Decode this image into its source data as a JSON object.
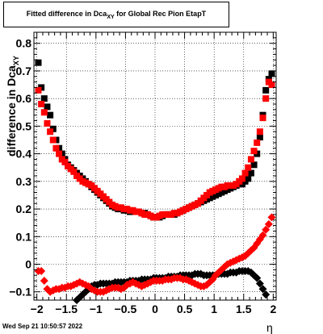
{
  "chart_data": {
    "type": "scatter",
    "title": "Fitted difference in Dca",
    "title_sub": "XY",
    "title_suffix": " for Global Rec Pion EtapT",
    "xlabel": "η",
    "ylabel": "difference in Dca",
    "ylabel_sub": "XY",
    "xlim": [
      -2.05,
      2.05
    ],
    "ylim": [
      -0.13,
      0.84
    ],
    "grid": true,
    "x_ticks": [
      -2,
      -1.5,
      -1,
      -0.5,
      0,
      0.5,
      1,
      1.5,
      2
    ],
    "x_tick_labels": [
      "−2",
      "−1.5",
      "−1",
      "−0.5",
      "0",
      "0.5",
      "1",
      "1.5",
      "2"
    ],
    "y_ticks": [
      -0.1,
      0,
      0.1,
      0.2,
      0.3,
      0.4,
      0.5,
      0.6,
      0.7,
      0.8
    ],
    "y_tick_labels": [
      "−0.1",
      "0",
      "0.1",
      "0.2",
      "0.3",
      "0.4",
      "0.5",
      "0.6",
      "0.7",
      "0.8"
    ],
    "colors": {
      "series_black": "#000000",
      "series_red": "#ff0000"
    },
    "series": [
      {
        "color": "#000000",
        "marker": "square",
        "x": [
          -1.975,
          -1.925,
          -1.875,
          -1.825,
          -1.775,
          -1.725,
          -1.675,
          -1.625,
          -1.575,
          -1.525,
          -1.475,
          -1.425,
          -1.375,
          -1.325,
          -1.275,
          -1.225,
          -1.175,
          -1.125,
          -1.075,
          -1.025,
          -0.975,
          -0.925,
          -0.875,
          -0.825,
          -0.775,
          -0.725,
          -0.675,
          -0.625,
          -0.575,
          -0.525,
          -0.475,
          -0.425,
          -0.375,
          -0.325,
          -0.275,
          -0.225,
          -0.175,
          -0.125,
          -0.075,
          -0.025,
          0.025,
          0.075,
          0.125,
          0.175,
          0.225,
          0.275,
          0.325,
          0.375,
          0.425,
          0.475,
          0.525,
          0.575,
          0.625,
          0.675,
          0.725,
          0.775,
          0.825,
          0.875,
          0.925,
          0.975,
          1.025,
          1.075,
          1.125,
          1.175,
          1.225,
          1.275,
          1.325,
          1.375,
          1.425,
          1.475,
          1.525,
          1.575,
          1.625,
          1.675,
          1.725,
          1.775,
          1.825,
          1.875,
          1.925,
          1.975
        ],
        "y": [
          0.73,
          0.64,
          0.6,
          0.57,
          0.54,
          0.49,
          0.45,
          0.42,
          0.4,
          0.38,
          0.36,
          0.35,
          0.34,
          0.33,
          0.32,
          0.31,
          0.3,
          0.29,
          0.28,
          0.27,
          0.26,
          0.25,
          0.24,
          0.23,
          0.22,
          0.21,
          0.205,
          0.2,
          0.2,
          0.195,
          0.195,
          0.19,
          0.19,
          0.19,
          0.19,
          0.185,
          0.185,
          0.18,
          0.175,
          0.17,
          0.17,
          0.17,
          0.175,
          0.18,
          0.18,
          0.18,
          0.18,
          0.185,
          0.19,
          0.195,
          0.2,
          0.205,
          0.21,
          0.215,
          0.22,
          0.225,
          0.23,
          0.235,
          0.24,
          0.245,
          0.25,
          0.255,
          0.26,
          0.265,
          0.27,
          0.275,
          0.28,
          0.285,
          0.29,
          0.29,
          0.3,
          0.31,
          0.33,
          0.36,
          0.4,
          0.46,
          0.54,
          0.63,
          0.67,
          0.69
        ]
      },
      {
        "color": "#ff0000",
        "marker": "square",
        "x": [
          -1.975,
          -1.925,
          -1.875,
          -1.825,
          -1.775,
          -1.725,
          -1.675,
          -1.625,
          -1.575,
          -1.525,
          -1.475,
          -1.425,
          -1.375,
          -1.325,
          -1.275,
          -1.225,
          -1.175,
          -1.125,
          -1.075,
          -1.025,
          -0.975,
          -0.925,
          -0.875,
          -0.825,
          -0.775,
          -0.725,
          -0.675,
          -0.625,
          -0.575,
          -0.525,
          -0.475,
          -0.425,
          -0.375,
          -0.325,
          -0.275,
          -0.225,
          -0.175,
          -0.125,
          -0.075,
          -0.025,
          0.025,
          0.075,
          0.125,
          0.175,
          0.225,
          0.275,
          0.325,
          0.375,
          0.425,
          0.475,
          0.525,
          0.575,
          0.625,
          0.675,
          0.725,
          0.775,
          0.825,
          0.875,
          0.925,
          0.975,
          1.025,
          1.075,
          1.125,
          1.175,
          1.225,
          1.275,
          1.325,
          1.375,
          1.425,
          1.475,
          1.525,
          1.575,
          1.625,
          1.675,
          1.725,
          1.775,
          1.825,
          1.875,
          1.925,
          1.975
        ],
        "y": [
          0.63,
          0.58,
          0.55,
          0.51,
          0.48,
          0.45,
          0.42,
          0.4,
          0.38,
          0.37,
          0.355,
          0.345,
          0.335,
          0.32,
          0.31,
          0.3,
          0.295,
          0.29,
          0.285,
          0.275,
          0.265,
          0.255,
          0.245,
          0.235,
          0.225,
          0.215,
          0.21,
          0.205,
          0.205,
          0.2,
          0.2,
          0.195,
          0.195,
          0.19,
          0.19,
          0.185,
          0.18,
          0.18,
          0.175,
          0.17,
          0.17,
          0.175,
          0.18,
          0.18,
          0.18,
          0.18,
          0.185,
          0.185,
          0.19,
          0.195,
          0.2,
          0.205,
          0.21,
          0.215,
          0.22,
          0.23,
          0.24,
          0.25,
          0.26,
          0.265,
          0.27,
          0.275,
          0.28,
          0.28,
          0.285,
          0.285,
          0.285,
          0.29,
          0.3,
          0.31,
          0.33,
          0.35,
          0.38,
          0.41,
          0.44,
          0.48,
          0.53,
          0.6,
          0.66,
          0.65
        ]
      },
      {
        "color": "#000000",
        "marker": "diamond",
        "x": [
          -1.325,
          -1.275,
          -1.225,
          -1.175,
          -1.125,
          -1.075,
          -1.025,
          -0.975,
          -0.925,
          -0.875,
          -0.825,
          -0.775,
          -0.725,
          -0.675,
          -0.625,
          -0.575,
          -0.525,
          -0.475,
          -0.425,
          -0.375,
          -0.325,
          -0.275,
          -0.225,
          -0.175,
          -0.125,
          -0.075,
          -0.025,
          0.025,
          0.075,
          0.125,
          0.175,
          0.225,
          0.275,
          0.325,
          0.375,
          0.425,
          0.475,
          0.525,
          0.575,
          0.625,
          0.675,
          0.725,
          0.775,
          0.825,
          0.875,
          0.925,
          0.975,
          1.025,
          1.075,
          1.125,
          1.175,
          1.225,
          1.275,
          1.325,
          1.375,
          1.425,
          1.475,
          1.525,
          1.575,
          1.625,
          1.675,
          1.725,
          1.775,
          1.825,
          1.875
        ],
        "y": [
          -0.13,
          -0.12,
          -0.11,
          -0.1,
          -0.09,
          -0.08,
          -0.075,
          -0.075,
          -0.07,
          -0.07,
          -0.07,
          -0.07,
          -0.07,
          -0.065,
          -0.065,
          -0.065,
          -0.065,
          -0.065,
          -0.06,
          -0.06,
          -0.06,
          -0.06,
          -0.055,
          -0.055,
          -0.055,
          -0.055,
          -0.05,
          -0.05,
          -0.05,
          -0.05,
          -0.05,
          -0.045,
          -0.045,
          -0.045,
          -0.045,
          -0.04,
          -0.04,
          -0.04,
          -0.04,
          -0.04,
          -0.035,
          -0.035,
          -0.035,
          -0.04,
          -0.04,
          -0.04,
          -0.04,
          -0.04,
          -0.035,
          -0.035,
          -0.035,
          -0.035,
          -0.03,
          -0.03,
          -0.03,
          -0.025,
          -0.025,
          -0.025,
          -0.025,
          -0.03,
          -0.04,
          -0.05,
          -0.07,
          -0.09,
          -0.11
        ]
      },
      {
        "color": "#ff0000",
        "marker": "diamond",
        "x": [
          -1.975,
          -1.925,
          -1.875,
          -1.825,
          -1.775,
          -1.725,
          -1.675,
          -1.625,
          -1.575,
          -1.525,
          -1.475,
          -1.425,
          -1.375,
          -1.325,
          -1.275,
          -1.225,
          -1.175,
          -1.125,
          -1.075,
          -1.025,
          -0.975,
          -0.925,
          -0.875,
          -0.825,
          -0.775,
          -0.725,
          -0.675,
          -0.625,
          -0.575,
          -0.525,
          -0.475,
          -0.425,
          -0.375,
          -0.325,
          -0.275,
          -0.225,
          -0.175,
          -0.125,
          -0.075,
          -0.025,
          0.025,
          0.075,
          0.125,
          0.175,
          0.225,
          0.275,
          0.325,
          0.375,
          0.425,
          0.475,
          0.525,
          0.575,
          0.625,
          0.675,
          0.725,
          0.775,
          0.825,
          0.875,
          0.925,
          0.975,
          1.025,
          1.075,
          1.125,
          1.175,
          1.225,
          1.275,
          1.325,
          1.375,
          1.425,
          1.475,
          1.525,
          1.575,
          1.625,
          1.675,
          1.725,
          1.775,
          1.825,
          1.875,
          1.925,
          1.975
        ],
        "y": [
          -0.025,
          -0.025,
          -0.06,
          -0.09,
          -0.1,
          -0.095,
          -0.09,
          -0.09,
          -0.085,
          -0.085,
          -0.08,
          -0.08,
          -0.075,
          -0.07,
          -0.065,
          -0.07,
          -0.075,
          -0.08,
          -0.09,
          -0.095,
          -0.1,
          -0.1,
          -0.1,
          -0.095,
          -0.09,
          -0.085,
          -0.085,
          -0.085,
          -0.09,
          -0.085,
          -0.075,
          -0.07,
          -0.065,
          -0.07,
          -0.075,
          -0.08,
          -0.075,
          -0.07,
          -0.065,
          -0.06,
          -0.06,
          -0.06,
          -0.06,
          -0.055,
          -0.055,
          -0.055,
          -0.05,
          -0.05,
          -0.05,
          -0.055,
          -0.055,
          -0.06,
          -0.065,
          -0.07,
          -0.075,
          -0.08,
          -0.08,
          -0.075,
          -0.065,
          -0.055,
          -0.04,
          -0.03,
          -0.02,
          -0.01,
          0.0,
          0.005,
          0.01,
          0.015,
          0.02,
          0.025,
          0.03,
          0.04,
          0.05,
          0.06,
          0.075,
          0.09,
          0.105,
          0.125,
          0.145,
          0.17
        ]
      }
    ]
  },
  "footer": {
    "date_stamp": "Wed Sep 21 10:50:57 2022"
  }
}
